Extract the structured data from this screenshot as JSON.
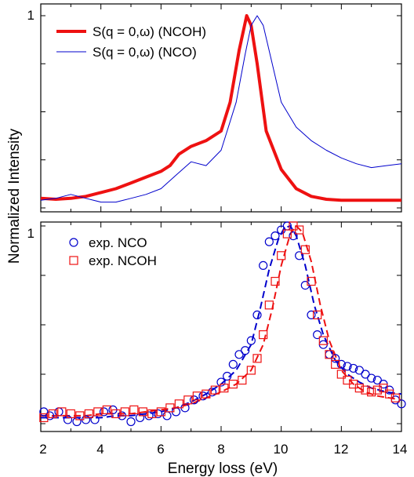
{
  "chart_data": [
    {
      "type": "line",
      "panel": "top",
      "xlim": [
        2,
        14
      ],
      "ylim": [
        0,
        1
      ],
      "ytick_labels": [
        "1"
      ],
      "grid": false,
      "legend_placement": "top-left",
      "series": [
        {
          "name": "S(q = 0,ω) (NCOH)",
          "color": "#ee1111",
          "style": "thick-solid",
          "x": [
            2.0,
            2.5,
            3.0,
            3.5,
            4.0,
            4.5,
            5.0,
            5.5,
            6.0,
            6.3,
            6.6,
            7.0,
            7.5,
            8.0,
            8.3,
            8.6,
            8.85,
            9.0,
            9.2,
            9.5,
            10.0,
            10.5,
            11.0,
            11.5,
            12.0,
            12.5,
            13.0,
            13.5,
            14.0
          ],
          "y": [
            0.05,
            0.045,
            0.05,
            0.06,
            0.08,
            0.1,
            0.13,
            0.16,
            0.19,
            0.22,
            0.28,
            0.32,
            0.35,
            0.4,
            0.55,
            0.82,
            1.0,
            0.95,
            0.75,
            0.4,
            0.2,
            0.1,
            0.06,
            0.045,
            0.04,
            0.04,
            0.04,
            0.04,
            0.04
          ]
        },
        {
          "name": "S(q = 0,ω) (NCO)",
          "color": "#0000cc",
          "style": "thin-solid",
          "x": [
            2.0,
            2.5,
            3.0,
            3.5,
            4.0,
            4.5,
            5.0,
            5.5,
            6.0,
            6.5,
            7.0,
            7.5,
            8.0,
            8.5,
            8.8,
            9.0,
            9.2,
            9.4,
            9.7,
            10.0,
            10.5,
            11.0,
            11.5,
            12.0,
            12.5,
            13.0,
            13.5,
            14.0
          ],
          "y": [
            0.04,
            0.05,
            0.07,
            0.05,
            0.03,
            0.03,
            0.05,
            0.07,
            0.1,
            0.17,
            0.24,
            0.22,
            0.3,
            0.55,
            0.8,
            0.95,
            1.0,
            0.95,
            0.75,
            0.55,
            0.42,
            0.35,
            0.3,
            0.26,
            0.23,
            0.21,
            0.22,
            0.23
          ]
        }
      ]
    },
    {
      "type": "scatter",
      "panel": "bottom",
      "xlabel": "Energy loss (eV)",
      "ylabel": "Normalized Intensity",
      "xlim": [
        2,
        14
      ],
      "ylim": [
        0,
        1
      ],
      "xtick_labels": [
        "2",
        "4",
        "6",
        "8",
        "10",
        "12",
        "14"
      ],
      "ytick_labels": [
        "1"
      ],
      "grid": false,
      "legend_placement": "top-left",
      "series": [
        {
          "name": "exp. NCO",
          "color": "#0000cc",
          "marker": "circle",
          "x": [
            2.1,
            2.3,
            2.6,
            2.9,
            3.2,
            3.5,
            3.8,
            4.1,
            4.4,
            4.7,
            5.0,
            5.3,
            5.6,
            5.9,
            6.2,
            6.5,
            6.8,
            7.1,
            7.4,
            7.7,
            8.0,
            8.2,
            8.4,
            8.6,
            8.8,
            9.0,
            9.2,
            9.4,
            9.6,
            9.8,
            10.0,
            10.2,
            10.4,
            10.6,
            10.8,
            11.0,
            11.2,
            11.4,
            11.6,
            11.8,
            12.0,
            12.2,
            12.4,
            12.6,
            12.8,
            13.0,
            13.2,
            13.4,
            13.6,
            13.8,
            14.0
          ],
          "y": [
            0.06,
            0.04,
            0.06,
            0.02,
            0.01,
            0.02,
            0.02,
            0.06,
            0.07,
            0.04,
            0.01,
            0.03,
            0.04,
            0.05,
            0.04,
            0.06,
            0.08,
            0.12,
            0.14,
            0.16,
            0.21,
            0.24,
            0.3,
            0.35,
            0.37,
            0.42,
            0.55,
            0.8,
            0.92,
            0.95,
            0.98,
            1.0,
            0.95,
            0.85,
            0.7,
            0.55,
            0.45,
            0.4,
            0.35,
            0.33,
            0.3,
            0.29,
            0.28,
            0.27,
            0.25,
            0.23,
            0.22,
            0.2,
            0.17,
            0.12,
            0.1
          ]
        },
        {
          "name": "exp. NCOH",
          "color": "#ee1111",
          "marker": "square",
          "x": [
            2.1,
            2.4,
            2.7,
            3.0,
            3.3,
            3.6,
            3.9,
            4.2,
            4.5,
            4.8,
            5.1,
            5.4,
            5.7,
            6.0,
            6.3,
            6.6,
            6.9,
            7.2,
            7.5,
            7.8,
            8.1,
            8.4,
            8.7,
            9.0,
            9.2,
            9.4,
            9.6,
            9.8,
            10.0,
            10.2,
            10.4,
            10.6,
            10.8,
            11.0,
            11.2,
            11.4,
            11.6,
            11.8,
            12.0,
            12.2,
            12.4,
            12.6,
            12.8,
            13.0,
            13.2,
            13.4,
            13.6,
            13.8
          ],
          "y": [
            0.03,
            0.05,
            0.06,
            0.05,
            0.04,
            0.05,
            0.06,
            0.07,
            0.05,
            0.06,
            0.07,
            0.06,
            0.05,
            0.06,
            0.08,
            0.1,
            0.12,
            0.14,
            0.15,
            0.17,
            0.18,
            0.2,
            0.22,
            0.27,
            0.33,
            0.45,
            0.6,
            0.72,
            0.85,
            0.96,
            1.0,
            0.98,
            0.88,
            0.72,
            0.55,
            0.42,
            0.35,
            0.3,
            0.25,
            0.22,
            0.2,
            0.18,
            0.17,
            0.16,
            0.17,
            0.18,
            0.15,
            0.13
          ]
        },
        {
          "name": "",
          "color": "#0000cc",
          "style": "dashed",
          "x": [
            2.0,
            2.5,
            3.0,
            3.5,
            4.0,
            4.5,
            5.0,
            5.5,
            6.0,
            6.5,
            7.0,
            7.5,
            8.0,
            8.5,
            9.0,
            9.3,
            9.6,
            9.9,
            10.1,
            10.3,
            10.5,
            10.8,
            11.1,
            11.4,
            11.8,
            12.2,
            12.6,
            13.0,
            13.5,
            14.0
          ],
          "y": [
            0.03,
            0.03,
            0.03,
            0.03,
            0.03,
            0.04,
            0.04,
            0.05,
            0.06,
            0.08,
            0.11,
            0.15,
            0.2,
            0.27,
            0.4,
            0.58,
            0.78,
            0.93,
            0.99,
            1.0,
            0.95,
            0.8,
            0.6,
            0.45,
            0.32,
            0.25,
            0.21,
            0.18,
            0.16,
            0.15
          ]
        },
        {
          "name": "",
          "color": "#ee1111",
          "style": "dashed",
          "x": [
            2.0,
            2.5,
            3.0,
            3.5,
            4.0,
            4.5,
            5.0,
            5.5,
            6.0,
            6.5,
            7.0,
            7.5,
            8.0,
            8.5,
            9.0,
            9.4,
            9.7,
            10.0,
            10.3,
            10.5,
            10.7,
            11.0,
            11.3,
            11.6,
            12.0,
            12.4,
            12.8,
            13.2,
            13.6,
            14.0
          ],
          "y": [
            0.04,
            0.04,
            0.04,
            0.04,
            0.05,
            0.05,
            0.05,
            0.06,
            0.07,
            0.08,
            0.1,
            0.13,
            0.16,
            0.2,
            0.27,
            0.4,
            0.58,
            0.8,
            0.96,
            1.0,
            0.97,
            0.82,
            0.6,
            0.42,
            0.27,
            0.2,
            0.16,
            0.14,
            0.13,
            0.12
          ]
        }
      ]
    }
  ]
}
